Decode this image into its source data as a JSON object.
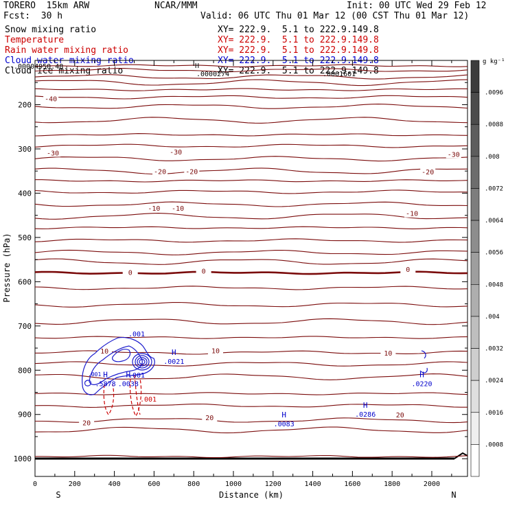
{
  "header": {
    "model": "TORERO  15km ARW",
    "center": "NCAR/MMM",
    "init": "Init: 00 UTC Wed 29 Feb 12",
    "fcst": "Fcst:  30 h",
    "valid": "Valid: 06 UTC Thu 01 Mar 12 (00 CST Thu 01 Mar 12)"
  },
  "fields": [
    {
      "name": "Snow mixing ratio",
      "xy": "XY= 222.9.  5.1 to 222.9.149.8",
      "color": "#000000"
    },
    {
      "name": "Temperature",
      "xy": "XY= 222.9.  5.1 to 222.9.149.8",
      "color": "#cc0000"
    },
    {
      "name": "Rain water mixing ratio",
      "xy": "XY= 222.9.  5.1 to 222.9.149.8",
      "color": "#cc0000"
    },
    {
      "name": "Cloud water mixing ratio",
      "xy": "XY= 222.9.  5.1 to 222.9.149.8",
      "color": "#0000cc"
    },
    {
      "name": "Cloud ice mixing ratio",
      "xy": "XY= 222.9.  5.1 to 222.9.149.8",
      "color": "#000000"
    }
  ],
  "colorbar": {
    "unit": "g kg⁻¹",
    "ticks": [
      ".0096",
      ".0088",
      ".008",
      ".0072",
      ".0064",
      ".0056",
      ".0048",
      ".004",
      ".0032",
      ".0024",
      ".0016",
      ".0008"
    ]
  },
  "chart_data": {
    "type": "cross-section contour",
    "xlabel": "Distance (km)",
    "ylabel": "Pressure (hPa)",
    "xlim": [
      0,
      2180
    ],
    "ylim": [
      1040,
      100
    ],
    "x_ticks": [
      0,
      200,
      400,
      600,
      800,
      1000,
      1200,
      1400,
      1600,
      1800,
      2000
    ],
    "y_ticks": [
      200,
      300,
      400,
      500,
      600,
      700,
      800,
      900,
      1000
    ],
    "left_end": "S",
    "right_end": "N",
    "temperature_labels": [
      {
        "text": "-40",
        "x": 80,
        "p": 188
      },
      {
        "text": "-30",
        "x": 90,
        "p": 310
      },
      {
        "text": "-30",
        "x": 710,
        "p": 308
      },
      {
        "text": "-30",
        "x": 2110,
        "p": 313
      },
      {
        "text": "-20",
        "x": 630,
        "p": 352
      },
      {
        "text": "-20",
        "x": 790,
        "p": 352
      },
      {
        "text": "-20",
        "x": 1980,
        "p": 353
      },
      {
        "text": "-10",
        "x": 600,
        "p": 435
      },
      {
        "text": "-10",
        "x": 720,
        "p": 435
      },
      {
        "text": "-10",
        "x": 1900,
        "p": 447
      },
      {
        "text": "0",
        "x": 480,
        "p": 580
      },
      {
        "text": "0",
        "x": 850,
        "p": 577
      },
      {
        "text": "0",
        "x": 1880,
        "p": 573
      },
      {
        "text": "10",
        "x": 350,
        "p": 758
      },
      {
        "text": "10",
        "x": 910,
        "p": 757
      },
      {
        "text": "10",
        "x": 1780,
        "p": 762
      },
      {
        "text": "20",
        "x": 260,
        "p": 920
      },
      {
        "text": "20",
        "x": 880,
        "p": 908
      },
      {
        "text": "20",
        "x": 1840,
        "p": 902
      }
    ],
    "temperature_levels_hPa": [
      112,
      122,
      137,
      150,
      166,
      183,
      204,
      235,
      268,
      293,
      322,
      350,
      372,
      397,
      425,
      452,
      478,
      507,
      534,
      555,
      580,
      614,
      652,
      690,
      726,
      760,
      786,
      815,
      853,
      880,
      913,
      935,
      995
    ],
    "extrema_labels": [
      {
        "text": "H",
        "value": ".0021",
        "x": 700,
        "p": 772
      },
      {
        "text": "H",
        "value": ".5878",
        "x": 355,
        "p": 822
      },
      {
        "text": "H",
        "value": ".0038",
        "x": 470,
        "p": 822
      },
      {
        "text": "H",
        "value": ".0220",
        "x": 1950,
        "p": 822
      },
      {
        "text": "H",
        "value": ".0083",
        "x": 1255,
        "p": 913
      },
      {
        "text": "H",
        "value": ".0286",
        "x": 1665,
        "p": 891
      }
    ],
    "cloud_water_labels": [
      ".001",
      ".001",
      ".001",
      ".001"
    ],
    "top_labels": [
      ".00004950.48",
      "H",
      ".0000274",
      ".0061601"
    ]
  }
}
